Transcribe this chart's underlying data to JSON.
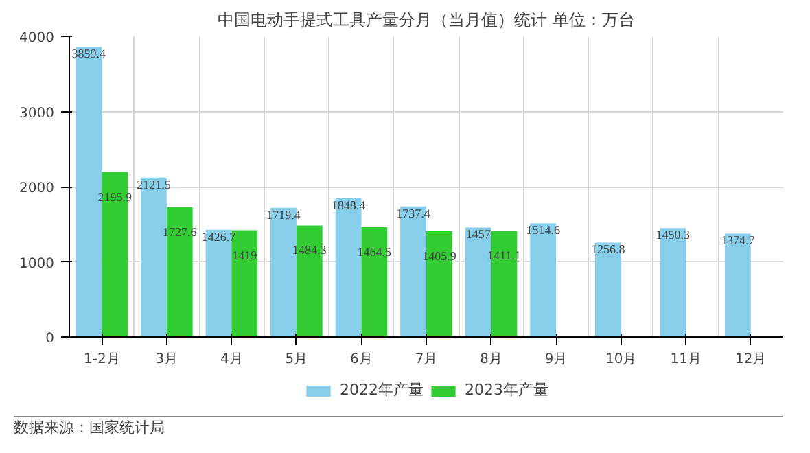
{
  "chart_data": {
    "type": "bar",
    "title": "中国电动手提式工具产量分月（当月值）统计 单位：万台",
    "categories": [
      "1-2月",
      "3月",
      "4月",
      "5月",
      "6月",
      "7月",
      "8月",
      "9月",
      "10月",
      "11月",
      "12月"
    ],
    "series": [
      {
        "name": "2022年产量",
        "color": "#87ceeb",
        "values": [
          3859.4,
          2121.5,
          1426.7,
          1719.4,
          1848.4,
          1737.4,
          1457,
          1514.6,
          1256.8,
          1450.3,
          1374.7
        ]
      },
      {
        "name": "2023年产量",
        "color": "#32cd32",
        "values": [
          2195.9,
          1727.6,
          1419,
          1484.3,
          1464.5,
          1405.9,
          1411.1,
          null,
          null,
          null,
          null
        ]
      }
    ],
    "ylim": [
      0,
      4000
    ],
    "yticks": [
      0,
      1000,
      2000,
      3000,
      4000
    ],
    "grid": true,
    "legend": "bottom",
    "data_labels": true,
    "annotations": [
      "数据来源：国家统计局"
    ]
  }
}
